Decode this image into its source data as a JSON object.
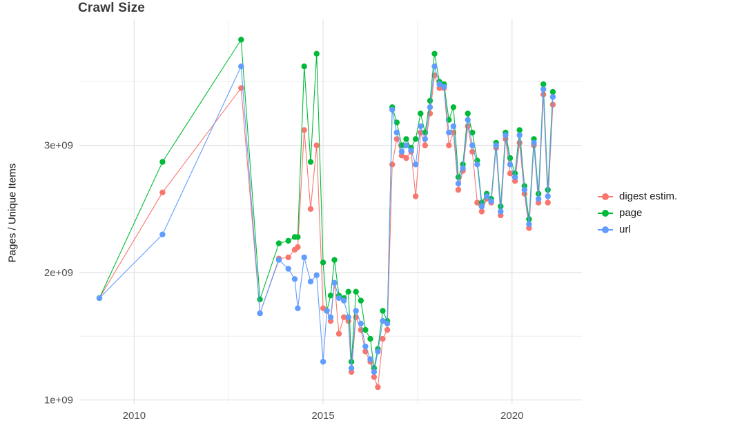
{
  "title": "Crawl Size",
  "ylabel": "Pages / Unique Items",
  "colors": {
    "background": "#ffffff",
    "grid_major": "#e2e2e2",
    "grid_minor": "#efefef",
    "tick_text": "#4d4d4d",
    "title_text": "#3a3a3a",
    "digest": "#F8766D",
    "page": "#00BA38",
    "url": "#619CFF"
  },
  "chart_data": {
    "type": "line",
    "title": "Crawl Size",
    "xlabel": "",
    "ylabel": "Pages / Unique Items",
    "grid": true,
    "legend_position": "right",
    "xlim": [
      2008.55,
      2021.85
    ],
    "ylim": [
      970000000.0,
      3990000000.0
    ],
    "x_major_ticks": [
      {
        "value": 2010,
        "label": "2010"
      },
      {
        "value": 2015,
        "label": "2015"
      },
      {
        "value": 2020,
        "label": "2020"
      }
    ],
    "x_minor_ticks": [
      2012.5,
      2017.5
    ],
    "y_major_ticks": [
      {
        "value": 1000000000.0,
        "label": "1e+09"
      },
      {
        "value": 2000000000.0,
        "label": "2e+09"
      },
      {
        "value": 3000000000.0,
        "label": "3e+09"
      }
    ],
    "y_minor_ticks": [
      1500000000.0,
      2500000000.0,
      3500000000.0
    ],
    "x": [
      2009.08,
      2010.75,
      2012.83,
      2013.33,
      2013.83,
      2014.08,
      2014.25,
      2014.33,
      2014.5,
      2014.67,
      2014.83,
      2015.0,
      2015.1,
      2015.2,
      2015.3,
      2015.42,
      2015.55,
      2015.67,
      2015.75,
      2015.87,
      2016.0,
      2016.12,
      2016.25,
      2016.35,
      2016.45,
      2016.58,
      2016.7,
      2016.83,
      2016.95,
      2017.08,
      2017.2,
      2017.33,
      2017.45,
      2017.58,
      2017.7,
      2017.83,
      2017.95,
      2018.08,
      2018.2,
      2018.33,
      2018.45,
      2018.58,
      2018.7,
      2018.83,
      2018.95,
      2019.08,
      2019.2,
      2019.33,
      2019.45,
      2019.58,
      2019.7,
      2019.83,
      2019.95,
      2020.08,
      2020.2,
      2020.33,
      2020.45,
      2020.58,
      2020.7,
      2020.83,
      2020.95,
      2021.08
    ],
    "series": [
      {
        "name": "digest estim.",
        "color": "#F8766D",
        "values": [
          1800000000.0,
          2630000000.0,
          3450000000.0,
          1680000000.0,
          2110000000.0,
          2120000000.0,
          2180000000.0,
          2200000000.0,
          3120000000.0,
          2500000000.0,
          3000000000.0,
          1720000000.0,
          1700000000.0,
          1620000000.0,
          1920000000.0,
          1520000000.0,
          1650000000.0,
          1620000000.0,
          1220000000.0,
          1650000000.0,
          1550000000.0,
          1380000000.0,
          1300000000.0,
          1180000000.0,
          1100000000.0,
          1480000000.0,
          1550000000.0,
          2850000000.0,
          3050000000.0,
          2920000000.0,
          2900000000.0,
          2950000000.0,
          2600000000.0,
          3100000000.0,
          3000000000.0,
          3250000000.0,
          3550000000.0,
          3450000000.0,
          3450000000.0,
          3000000000.0,
          3100000000.0,
          2650000000.0,
          2800000000.0,
          3150000000.0,
          2950000000.0,
          2550000000.0,
          2480000000.0,
          2580000000.0,
          2550000000.0,
          2980000000.0,
          2450000000.0,
          3050000000.0,
          2780000000.0,
          2720000000.0,
          3020000000.0,
          2620000000.0,
          2350000000.0,
          3000000000.0,
          2550000000.0,
          3400000000.0,
          2550000000.0,
          3320000000.0
        ]
      },
      {
        "name": "page",
        "color": "#00BA38",
        "values": [
          1800000000.0,
          2870000000.0,
          3830000000.0,
          1790000000.0,
          2230000000.0,
          2250000000.0,
          2280000000.0,
          2280000000.0,
          3620000000.0,
          2870000000.0,
          3720000000.0,
          2080000000.0,
          1700000000.0,
          1820000000.0,
          2100000000.0,
          1820000000.0,
          1800000000.0,
          1850000000.0,
          1300000000.0,
          1850000000.0,
          1780000000.0,
          1550000000.0,
          1480000000.0,
          1250000000.0,
          1400000000.0,
          1700000000.0,
          1620000000.0,
          3300000000.0,
          3180000000.0,
          3000000000.0,
          3050000000.0,
          2980000000.0,
          3050000000.0,
          3250000000.0,
          3100000000.0,
          3350000000.0,
          3720000000.0,
          3500000000.0,
          3480000000.0,
          3200000000.0,
          3300000000.0,
          2750000000.0,
          2850000000.0,
          3250000000.0,
          3100000000.0,
          2880000000.0,
          2550000000.0,
          2620000000.0,
          2580000000.0,
          3020000000.0,
          2520000000.0,
          3100000000.0,
          2900000000.0,
          2780000000.0,
          3120000000.0,
          2680000000.0,
          2420000000.0,
          3050000000.0,
          2620000000.0,
          3480000000.0,
          2650000000.0,
          3420000000.0
        ]
      },
      {
        "name": "url",
        "color": "#619CFF",
        "values": [
          1800000000.0,
          2300000000.0,
          3620000000.0,
          1680000000.0,
          2100000000.0,
          2030000000.0,
          1950000000.0,
          1720000000.0,
          2120000000.0,
          1930000000.0,
          1980000000.0,
          1300000000.0,
          1700000000.0,
          1650000000.0,
          1920000000.0,
          1800000000.0,
          1780000000.0,
          1650000000.0,
          1250000000.0,
          1700000000.0,
          1600000000.0,
          1420000000.0,
          1320000000.0,
          1220000000.0,
          1380000000.0,
          1620000000.0,
          1600000000.0,
          3280000000.0,
          3100000000.0,
          2950000000.0,
          3000000000.0,
          2960000000.0,
          2850000000.0,
          3150000000.0,
          3050000000.0,
          3300000000.0,
          3620000000.0,
          3480000000.0,
          3460000000.0,
          3100000000.0,
          3150000000.0,
          2700000000.0,
          2820000000.0,
          3200000000.0,
          3000000000.0,
          2850000000.0,
          2520000000.0,
          2600000000.0,
          2560000000.0,
          3000000000.0,
          2480000000.0,
          3080000000.0,
          2850000000.0,
          2750000000.0,
          3080000000.0,
          2650000000.0,
          2380000000.0,
          3020000000.0,
          2580000000.0,
          3440000000.0,
          2600000000.0,
          3380000000.0
        ]
      }
    ]
  }
}
